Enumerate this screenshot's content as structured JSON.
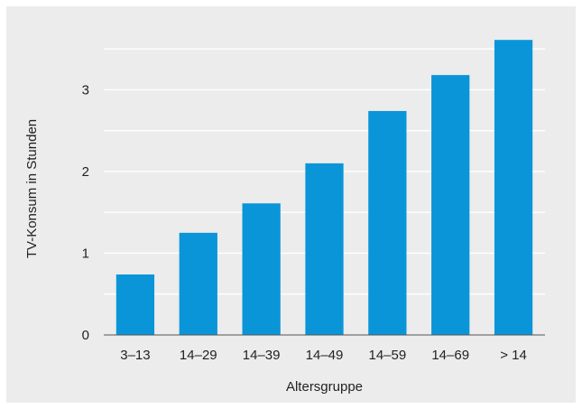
{
  "chart_data": {
    "type": "bar",
    "title": "",
    "xlabel": "Altersgruppe",
    "ylabel": "TV-Konsum in Stunden",
    "categories": [
      "3–13",
      "14–29",
      "14–39",
      "14–49",
      "14–59",
      "14–69",
      "> 14"
    ],
    "values": [
      0.74,
      1.25,
      1.61,
      2.1,
      2.74,
      3.18,
      3.61
    ],
    "ylim": [
      0,
      3.8
    ],
    "yticks": [
      0,
      1,
      2,
      3
    ],
    "grid": true,
    "bar_color": "#0a95d8",
    "background_color": "#ececec",
    "grid_color": "#ffffff"
  }
}
